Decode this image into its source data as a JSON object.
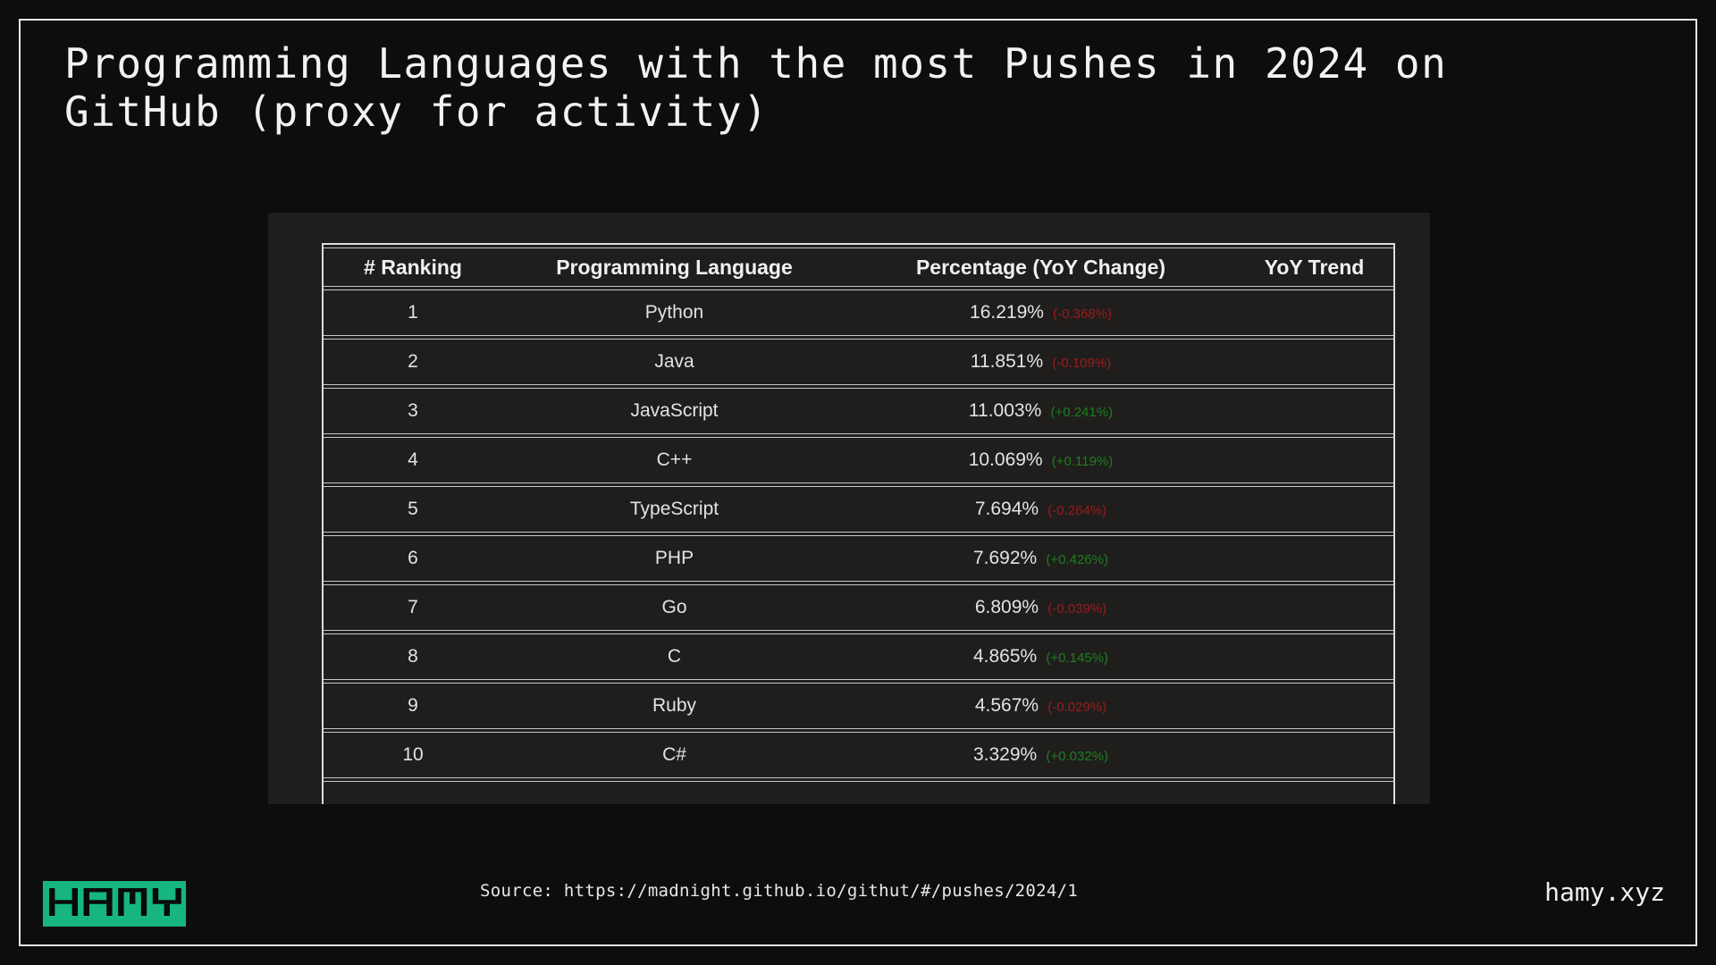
{
  "title": "Programming Languages with the most Pushes in 2024 on GitHub (proxy for activity)",
  "table": {
    "columns": [
      "# Ranking",
      "Programming Language",
      "Percentage (YoY Change)",
      "YoY Trend"
    ],
    "rows": [
      {
        "rank": "1",
        "language": "Python",
        "percentage": "16.219%",
        "change": "(-0.368%)",
        "direction": "down",
        "trend": ""
      },
      {
        "rank": "2",
        "language": "Java",
        "percentage": "11.851%",
        "change": "(-0.109%)",
        "direction": "down",
        "trend": ""
      },
      {
        "rank": "3",
        "language": "JavaScript",
        "percentage": "11.003%",
        "change": "(+0.241%)",
        "direction": "up",
        "trend": ""
      },
      {
        "rank": "4",
        "language": "C++",
        "percentage": "10.069%",
        "change": "(+0.119%)",
        "direction": "up",
        "trend": ""
      },
      {
        "rank": "5",
        "language": "TypeScript",
        "percentage": "7.694%",
        "change": "(-0.264%)",
        "direction": "down",
        "trend": ""
      },
      {
        "rank": "6",
        "language": "PHP",
        "percentage": "7.692%",
        "change": "(+0.426%)",
        "direction": "up",
        "trend": ""
      },
      {
        "rank": "7",
        "language": "Go",
        "percentage": "6.809%",
        "change": "(-0.039%)",
        "direction": "down",
        "trend": ""
      },
      {
        "rank": "8",
        "language": "C",
        "percentage": "4.865%",
        "change": "(+0.145%)",
        "direction": "up",
        "trend": ""
      },
      {
        "rank": "9",
        "language": "Ruby",
        "percentage": "4.567%",
        "change": "(-0.029%)",
        "direction": "down",
        "trend": ""
      },
      {
        "rank": "10",
        "language": "C#",
        "percentage": "3.329%",
        "change": "(+0.032%)",
        "direction": "up",
        "trend": ""
      }
    ]
  },
  "footer": {
    "source": "Source: https://madnight.github.io/githut/#/pushes/2024/1",
    "logo_text": "HAMY",
    "site": "hamy.xyz"
  },
  "colors": {
    "negative_change": "#9b1b1b",
    "positive_change": "#1e7d1e",
    "logo_green": "#17b67e",
    "background": "#0d0d0d",
    "panel_background": "#1f1e1d",
    "frame_border": "#e5e5e5"
  }
}
